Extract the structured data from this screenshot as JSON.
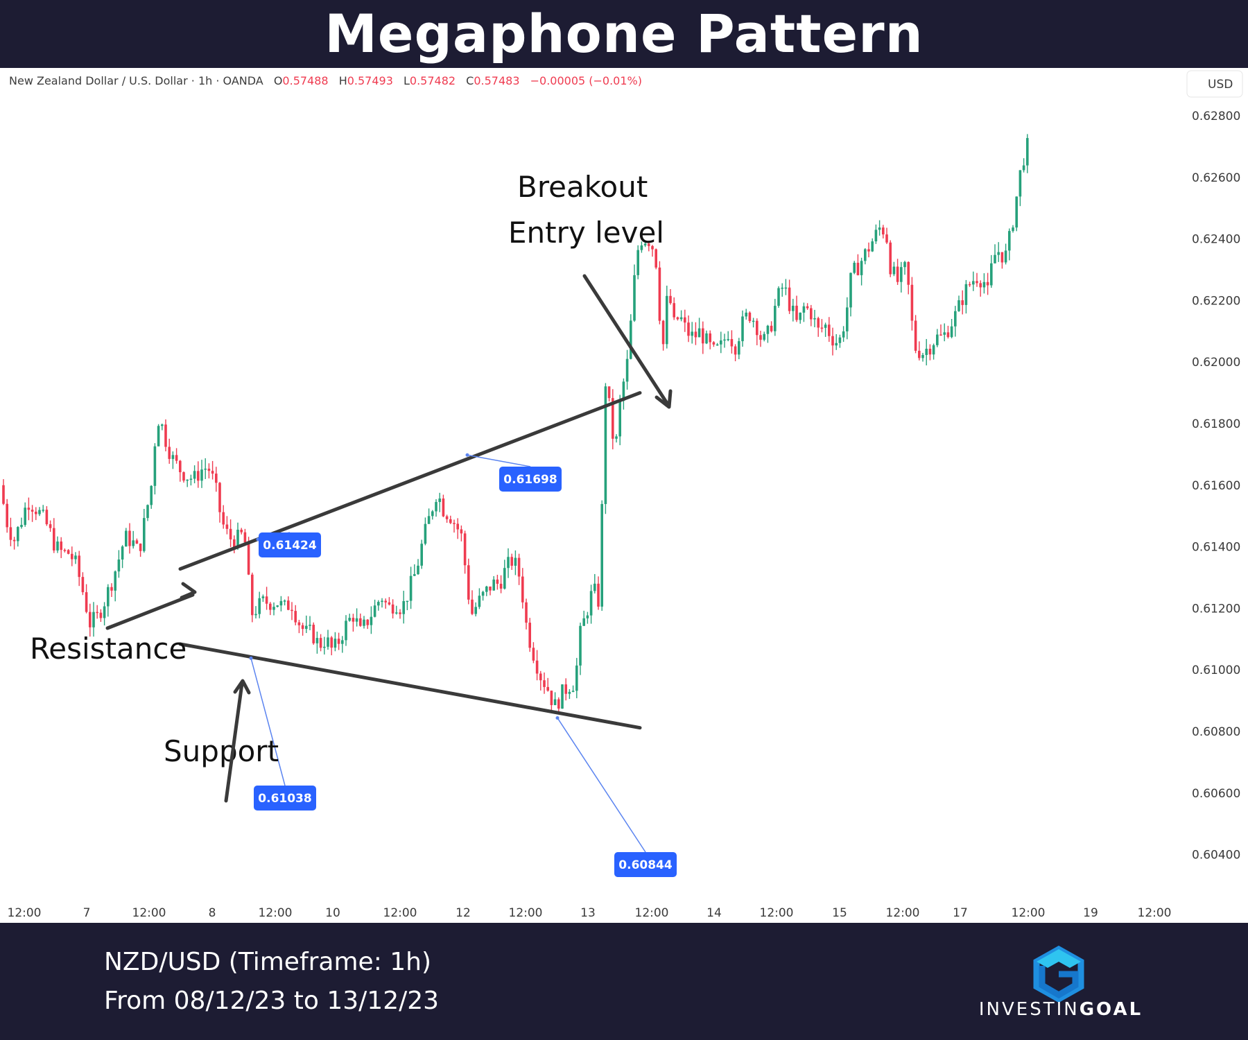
{
  "header": {
    "title": "Megaphone Pattern"
  },
  "footer": {
    "line1": "NZD/USD (Timeframe: 1h)",
    "line2": "From 08/12/23 to 13/12/23",
    "logo_prefix": "INVESTIN",
    "logo_suffix": "GOAL",
    "logo_icon": "investingoal-hexagon-g-icon"
  },
  "symbol_bar": {
    "name": "New Zealand Dollar / U.S. Dollar · 1h · OANDA",
    "o_label": "O",
    "o_value": "0.57488",
    "h_label": "H",
    "h_value": "0.57493",
    "l_label": "L",
    "l_value": "0.57482",
    "c_label": "C",
    "c_value": "0.57483",
    "change": "−0.00005 (−0.01%)",
    "currency": "USD"
  },
  "colors": {
    "up": "#26a17b",
    "down": "#ef3b50",
    "tag": "#2962ff",
    "trendline": "#3a3a3a",
    "brand_dark": "#1d1c33"
  },
  "chart_data": {
    "type": "candlestick",
    "instrument": "NZD/USD",
    "timeframe": "1h",
    "y_axis": {
      "ticks": [
        "0.62800",
        "0.62600",
        "0.62400",
        "0.62200",
        "0.62000",
        "0.61800",
        "0.61600",
        "0.61400",
        "0.61200",
        "0.61000",
        "0.60800",
        "0.60600",
        "0.60400"
      ],
      "range": [
        0.6032,
        0.6305
      ]
    },
    "x_axis": {
      "ticks": [
        "12:00",
        "7",
        "12:00",
        "8",
        "12:00",
        "10",
        "12:00",
        "12",
        "12:00",
        "13",
        "12:00",
        "14",
        "12:00",
        "15",
        "12:00",
        "17",
        "12:00",
        "19",
        "12:00"
      ]
    },
    "price_path": [
      [
        0,
        0.616
      ],
      [
        10,
        0.6148
      ],
      [
        20,
        0.6142
      ],
      [
        30,
        0.6148
      ],
      [
        40,
        0.6155
      ],
      [
        50,
        0.6153
      ],
      [
        60,
        0.615
      ],
      [
        70,
        0.6146
      ],
      [
        80,
        0.614
      ],
      [
        90,
        0.6138
      ],
      [
        100,
        0.6138
      ],
      [
        110,
        0.6134
      ],
      [
        120,
        0.6125
      ],
      [
        130,
        0.6115
      ],
      [
        140,
        0.6117
      ],
      [
        150,
        0.6122
      ],
      [
        160,
        0.6128
      ],
      [
        170,
        0.6135
      ],
      [
        180,
        0.6143
      ],
      [
        190,
        0.6142
      ],
      [
        200,
        0.6138
      ],
      [
        210,
        0.615
      ],
      [
        220,
        0.6162
      ],
      [
        225,
        0.618
      ],
      [
        230,
        0.6182
      ],
      [
        240,
        0.6174
      ],
      [
        250,
        0.6168
      ],
      [
        260,
        0.6165
      ],
      [
        270,
        0.6163
      ],
      [
        280,
        0.6162
      ],
      [
        290,
        0.6165
      ],
      [
        300,
        0.6166
      ],
      [
        310,
        0.616
      ],
      [
        320,
        0.6148
      ],
      [
        330,
        0.6143
      ],
      [
        340,
        0.6142
      ],
      [
        350,
        0.6144
      ],
      [
        355,
        0.614
      ],
      [
        358,
        0.613
      ],
      [
        362,
        0.6118
      ],
      [
        370,
        0.612
      ],
      [
        380,
        0.6122
      ],
      [
        390,
        0.6122
      ],
      [
        400,
        0.6122
      ],
      [
        410,
        0.612
      ],
      [
        420,
        0.6122
      ],
      [
        430,
        0.6116
      ],
      [
        440,
        0.6112
      ],
      [
        450,
        0.6112
      ],
      [
        460,
        0.6108
      ],
      [
        470,
        0.611
      ],
      [
        480,
        0.6106
      ],
      [
        490,
        0.611
      ],
      [
        500,
        0.6115
      ],
      [
        510,
        0.6118
      ],
      [
        520,
        0.6112
      ],
      [
        530,
        0.6116
      ],
      [
        540,
        0.612
      ],
      [
        550,
        0.6124
      ],
      [
        560,
        0.612
      ],
      [
        570,
        0.6122
      ],
      [
        580,
        0.612
      ],
      [
        590,
        0.6126
      ],
      [
        600,
        0.6132
      ],
      [
        610,
        0.6142
      ],
      [
        620,
        0.615
      ],
      [
        630,
        0.6158
      ],
      [
        640,
        0.6152
      ],
      [
        650,
        0.615
      ],
      [
        660,
        0.6146
      ],
      [
        668,
        0.6142
      ],
      [
        672,
        0.613
      ],
      [
        680,
        0.6118
      ],
      [
        690,
        0.6122
      ],
      [
        700,
        0.6125
      ],
      [
        710,
        0.6128
      ],
      [
        720,
        0.6128
      ],
      [
        730,
        0.6133
      ],
      [
        740,
        0.6136
      ],
      [
        750,
        0.613
      ],
      [
        755,
        0.6122
      ],
      [
        760,
        0.6113
      ],
      [
        770,
        0.6105
      ],
      [
        780,
        0.6098
      ],
      [
        790,
        0.6094
      ],
      [
        800,
        0.6088
      ],
      [
        810,
        0.6092
      ],
      [
        820,
        0.6095
      ],
      [
        830,
        0.6096
      ],
      [
        835,
        0.611
      ],
      [
        845,
        0.6118
      ],
      [
        855,
        0.6126
      ],
      [
        862,
        0.6124
      ],
      [
        866,
        0.6118
      ],
      [
        870,
        0.618
      ],
      [
        875,
        0.62
      ],
      [
        880,
        0.618
      ],
      [
        888,
        0.6172
      ],
      [
        895,
        0.6188
      ],
      [
        905,
        0.62
      ],
      [
        912,
        0.6218
      ],
      [
        918,
        0.6235
      ],
      [
        925,
        0.624
      ],
      [
        935,
        0.624
      ],
      [
        945,
        0.6236
      ],
      [
        950,
        0.6222
      ],
      [
        955,
        0.62
      ],
      [
        960,
        0.6218
      ],
      [
        965,
        0.6222
      ],
      [
        972,
        0.6212
      ],
      [
        980,
        0.6215
      ],
      [
        990,
        0.621
      ],
      [
        1000,
        0.6208
      ],
      [
        1010,
        0.621
      ],
      [
        1020,
        0.6206
      ],
      [
        1030,
        0.6203
      ],
      [
        1040,
        0.6205
      ],
      [
        1050,
        0.621
      ],
      [
        1060,
        0.6205
      ],
      [
        1070,
        0.6212
      ],
      [
        1080,
        0.6216
      ],
      [
        1090,
        0.6213
      ],
      [
        1100,
        0.6206
      ],
      [
        1110,
        0.621
      ],
      [
        1120,
        0.622
      ],
      [
        1130,
        0.6225
      ],
      [
        1140,
        0.6218
      ],
      [
        1150,
        0.6212
      ],
      [
        1160,
        0.6218
      ],
      [
        1170,
        0.6216
      ],
      [
        1180,
        0.621
      ],
      [
        1190,
        0.6212
      ],
      [
        1200,
        0.6208
      ],
      [
        1210,
        0.6206
      ],
      [
        1220,
        0.6215
      ],
      [
        1228,
        0.6228
      ],
      [
        1240,
        0.6232
      ],
      [
        1250,
        0.6236
      ],
      [
        1260,
        0.624
      ],
      [
        1270,
        0.6244
      ],
      [
        1278,
        0.6242
      ],
      [
        1285,
        0.623
      ],
      [
        1295,
        0.6226
      ],
      [
        1305,
        0.623
      ],
      [
        1312,
        0.6222
      ],
      [
        1318,
        0.6205
      ],
      [
        1330,
        0.6203
      ],
      [
        1340,
        0.6205
      ],
      [
        1350,
        0.6208
      ],
      [
        1360,
        0.6208
      ],
      [
        1370,
        0.6212
      ],
      [
        1380,
        0.6216
      ],
      [
        1390,
        0.6222
      ],
      [
        1400,
        0.6226
      ],
      [
        1410,
        0.6228
      ],
      [
        1420,
        0.6226
      ],
      [
        1425,
        0.6222
      ],
      [
        1432,
        0.6234
      ],
      [
        1440,
        0.6236
      ],
      [
        1450,
        0.6234
      ],
      [
        1458,
        0.6242
      ],
      [
        1465,
        0.6252
      ],
      [
        1472,
        0.6262
      ],
      [
        1478,
        0.6268
      ],
      [
        1482,
        0.627
      ]
    ],
    "price_labels": [
      {
        "value": "0.61424",
        "price": 0.61424,
        "x": 372
      },
      {
        "value": "0.61038",
        "price": 0.61038,
        "x": 362
      },
      {
        "value": "0.61698",
        "price": 0.61698,
        "x": 674
      },
      {
        "value": "0.60844",
        "price": 0.60844,
        "x": 804
      }
    ],
    "trendlines": [
      {
        "name": "resistance-line",
        "from": [
          260,
          0.61328
        ],
        "to": [
          923,
          0.619
        ]
      },
      {
        "name": "support-line",
        "from": [
          260,
          0.61084
        ],
        "to": [
          923,
          0.60812
        ]
      }
    ],
    "annotations": [
      {
        "text": "Breakout"
      },
      {
        "text": "Entry level"
      },
      {
        "text": "Resistance"
      },
      {
        "text": "Support"
      }
    ]
  }
}
